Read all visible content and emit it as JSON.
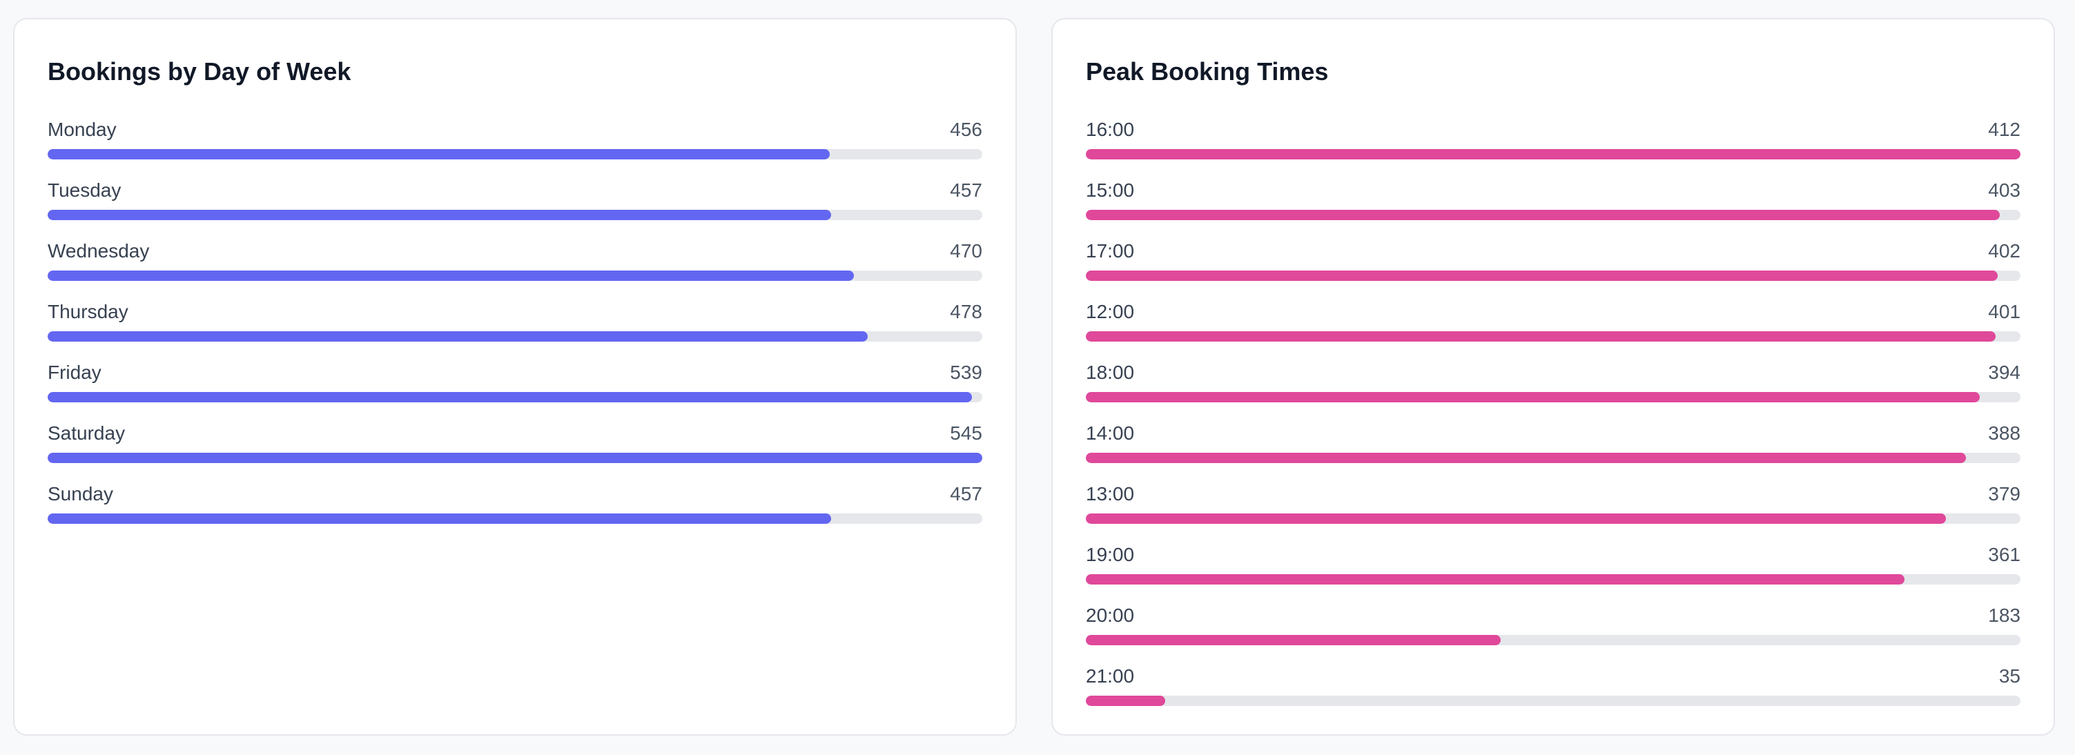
{
  "chart_data": [
    {
      "type": "bar",
      "orientation": "horizontal",
      "title": "Bookings by Day of Week",
      "categories": [
        "Monday",
        "Tuesday",
        "Wednesday",
        "Thursday",
        "Friday",
        "Saturday",
        "Sunday"
      ],
      "values": [
        456,
        457,
        470,
        478,
        539,
        545,
        457
      ],
      "color": "#6366f1",
      "track_color": "#e5e7eb"
    },
    {
      "type": "bar",
      "orientation": "horizontal",
      "title": "Peak Booking Times",
      "categories": [
        "16:00",
        "15:00",
        "17:00",
        "12:00",
        "18:00",
        "14:00",
        "13:00",
        "19:00",
        "20:00",
        "21:00"
      ],
      "values": [
        412,
        403,
        402,
        401,
        394,
        388,
        379,
        361,
        183,
        35
      ],
      "color": "#e0489a",
      "track_color": "#e5e7eb"
    }
  ]
}
